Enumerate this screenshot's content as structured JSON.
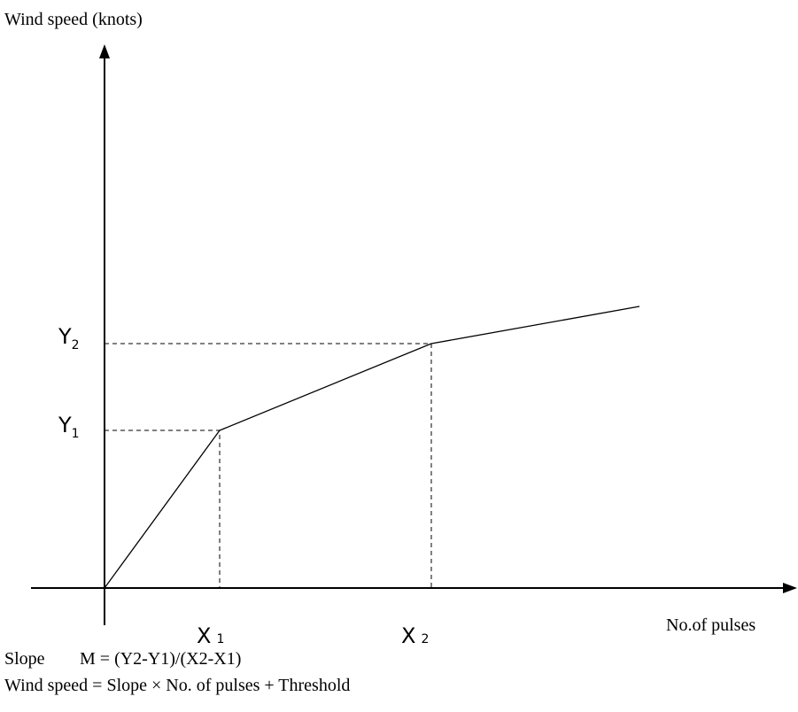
{
  "axes": {
    "y_label": "Wind speed (knots)",
    "x_label": "No.of pulses"
  },
  "markers": {
    "y2": {
      "letter": "Y",
      "sub": "2"
    },
    "y1": {
      "letter": "Y",
      "sub": "1"
    },
    "x1": {
      "letter": "X",
      "sub": "1"
    },
    "x2": {
      "letter": "X",
      "sub": "2"
    }
  },
  "formulas": {
    "slope_label": "Slope",
    "slope": "M = (Y2-Y1)/(X2-X1)",
    "wind_speed": "Wind speed = Slope × No. of pulses + Threshold"
  }
}
